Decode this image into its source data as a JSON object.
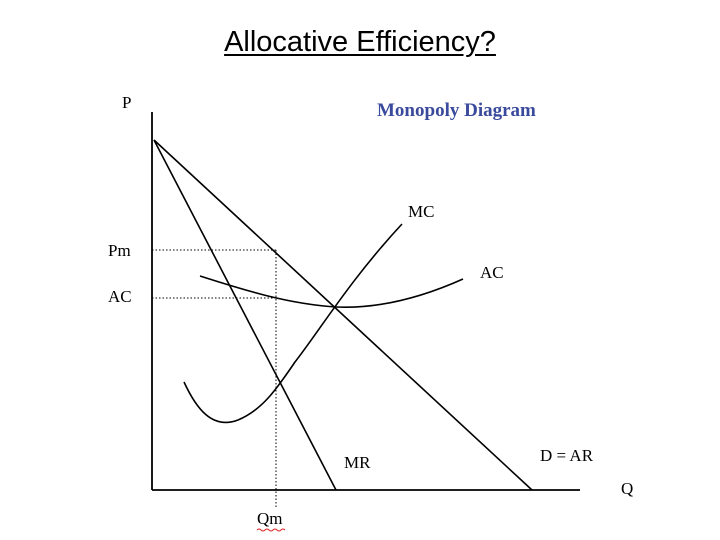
{
  "slide": {
    "title": "Allocative Efficiency?"
  },
  "diagram": {
    "title": "Monopoly Diagram",
    "axes": {
      "y_label": "P",
      "x_label": "Q"
    },
    "price_labels": {
      "pm": "Pm",
      "ac": "AC"
    },
    "quantity_labels": {
      "qm": "Qm"
    },
    "curve_labels": {
      "mc": "MC",
      "ac": "AC",
      "mr": "MR",
      "demand": "D = AR"
    },
    "colors": {
      "title": "#3a4a9c",
      "lines": "#000000"
    }
  }
}
